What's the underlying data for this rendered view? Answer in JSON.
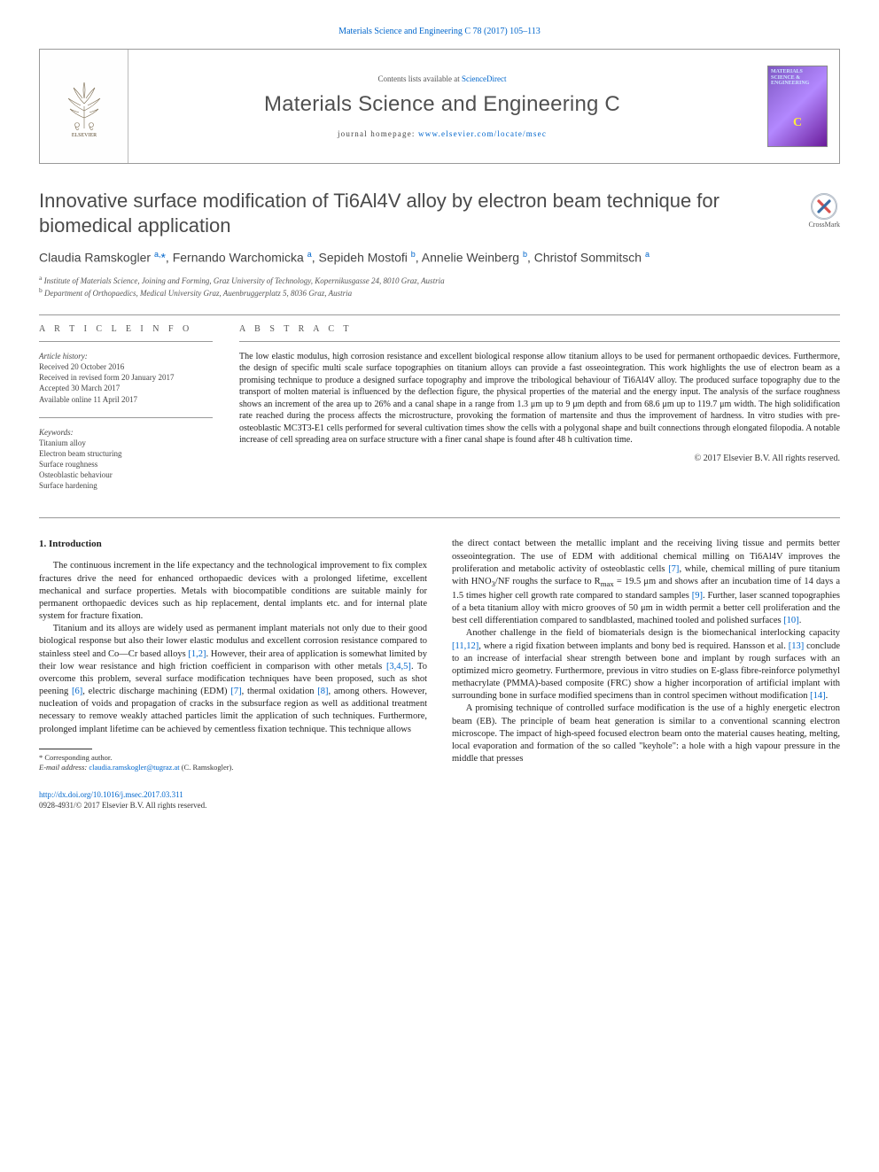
{
  "header": {
    "top_ref": "Materials Science and Engineering C 78 (2017) 105–113",
    "contents_prefix": "Contents lists available at ",
    "contents_link": "ScienceDirect",
    "journal_name": "Materials Science and Engineering C",
    "homepage_prefix": "journal homepage: ",
    "homepage_link": "www.elsevier.com/locate/msec",
    "cover_label_line1": "MATERIALS",
    "cover_label_line2": "SCIENCE &",
    "cover_label_line3": "ENGINEERING",
    "cover_c": "C"
  },
  "crossmark": {
    "label": "CrossMark"
  },
  "title": "Innovative surface modification of Ti6Al4V alloy by electron beam technique for biomedical application",
  "authors_html": "Claudia Ramskogler <sup>a,</sup><span class='star'>*</span>, Fernando Warchomicka <sup>a</sup>, Sepideh Mostofi <sup>b</sup>, Annelie Weinberg <sup>b</sup>, Christof Sommitsch <sup>a</sup>",
  "affiliations": {
    "a": "Institute of Materials Science, Joining and Forming, Graz University of Technology, Kopernikusgasse 24, 8010 Graz, Austria",
    "b": "Department of Orthopaedics, Medical University Graz, Auenbruggerplatz 5, 8036 Graz, Austria"
  },
  "article_info": {
    "heading": "A R T I C L E   I N F O",
    "history_label": "Article history:",
    "received": "Received 20 October 2016",
    "revised": "Received in revised form 20 January 2017",
    "accepted": "Accepted 30 March 2017",
    "online": "Available online 11 April 2017",
    "keywords_label": "Keywords:",
    "keywords": [
      "Titanium alloy",
      "Electron beam structuring",
      "Surface roughness",
      "Osteoblastic behaviour",
      "Surface hardening"
    ]
  },
  "abstract": {
    "heading": "A B S T R A C T",
    "text": "The low elastic modulus, high corrosion resistance and excellent biological response allow titanium alloys to be used for permanent orthopaedic devices. Furthermore, the design of specific multi scale surface topographies on titanium alloys can provide a fast osseointegration. This work highlights the use of electron beam as a promising technique to produce a designed surface topography and improve the tribological behaviour of Ti6Al4V alloy. The produced surface topography due to the transport of molten material is influenced by the deflection figure, the physical properties of the material and the energy input. The analysis of the surface roughness shows an increment of the area up to 26% and a canal shape in a range from 1.3 μm up to 9 μm depth and from 68.6 μm up to 119.7 μm width. The high solidification rate reached during the process affects the microstructure, provoking the formation of martensite and thus the improvement of hardness. In vitro studies with pre-osteoblastic MC3T3-E1 cells performed for several cultivation times show the cells with a polygonal shape and built connections through elongated filopodia. A notable increase of cell spreading area on surface structure with a finer canal shape is found after 48 h cultivation time.",
    "copyright": "© 2017 Elsevier B.V. All rights reserved."
  },
  "body": {
    "section_heading": "1. Introduction",
    "col1_para1": "The continuous increment in the life expectancy and the technological improvement to fix complex fractures drive the need for enhanced orthopaedic devices with a prolonged lifetime, excellent mechanical and surface properties. Metals with biocompatible conditions are suitable mainly for permanent orthopaedic devices such as hip replacement, dental implants etc. and for internal plate system for fracture fixation.",
    "col1_para2_html": "Titanium and its alloys are widely used as permanent implant materials not only due to their good biological response but also their lower elastic modulus and excellent corrosion resistance compared to stainless steel and Co—Cr based alloys <span class='ref-link'>[1,2]</span>. However, their area of application is somewhat limited by their low wear resistance and high friction coefficient in comparison with other metals <span class='ref-link'>[3,4,5]</span>. To overcome this problem, several surface modification techniques have been proposed, such as shot peening <span class='ref-link'>[6]</span>, electric discharge machining (EDM) <span class='ref-link'>[7]</span>, thermal oxidation <span class='ref-link'>[8]</span>, among others. However, nucleation of voids and propagation of cracks in the subsurface region as well as additional treatment necessary to remove weakly attached particles limit the application of such techniques. Furthermore, prolonged implant lifetime can be achieved by cementless fixation technique. This technique allows",
    "col2_para1_html": "the direct contact between the metallic implant and the receiving living tissue and permits better osseointegration. The use of EDM with additional chemical milling on Ti6Al4V improves the proliferation and metabolic activity of osteoblastic cells <span class='ref-link'>[7]</span>, while, chemical milling of pure titanium with HNO<sub>3</sub>/NF roughs the surface to R<sub>max</sub> = 19.5 μm and shows after an incubation time of 14 days a 1.5 times higher cell growth rate compared to standard samples <span class='ref-link'>[9]</span>. Further, laser scanned topographies of a beta titanium alloy with micro grooves of 50 μm in width permit a better cell proliferation and the best cell differentiation compared to sandblasted, machined tooled and polished surfaces <span class='ref-link'>[10]</span>.",
    "col2_para2_html": "Another challenge in the field of biomaterials design is the biomechanical interlocking capacity <span class='ref-link'>[11,12]</span>, where a rigid fixation between implants and bony bed is required. Hansson et al. <span class='ref-link'>[13]</span> conclude to an increase of interfacial shear strength between bone and implant by rough surfaces with an optimized micro geometry. Furthermore, previous in vitro studies on E-glass fibre-reinforce polymethyl methacrylate (PMMA)-based composite (FRC) show a higher incorporation of artificial implant with surrounding bone in surface modified specimens than in control specimen without modification <span class='ref-link'>[14]</span>.",
    "col2_para3_html": "A promising technique of controlled surface modification is the use of a highly energetic electron beam (EB). The principle of beam heat generation is similar to a conventional scanning electron microscope. The impact of high-speed focused electron beam onto the material causes heating, melting, local evaporation and formation of the so called \"keyhole\": a hole with a high vapour pressure in the middle that presses"
  },
  "footnote": {
    "corresp_label": "* Corresponding author.",
    "email_label": "E-mail address:",
    "email": "claudia.ramskogler@tugraz.at",
    "email_suffix": "(C. Ramskogler)."
  },
  "footer": {
    "doi": "http://dx.doi.org/10.1016/j.msec.2017.03.311",
    "issn_line": "0928-4931/© 2017 Elsevier B.V. All rights reserved."
  },
  "colors": {
    "link": "#0066cc",
    "text": "#333333",
    "heading": "#4a4a4a",
    "rule": "#999999"
  }
}
